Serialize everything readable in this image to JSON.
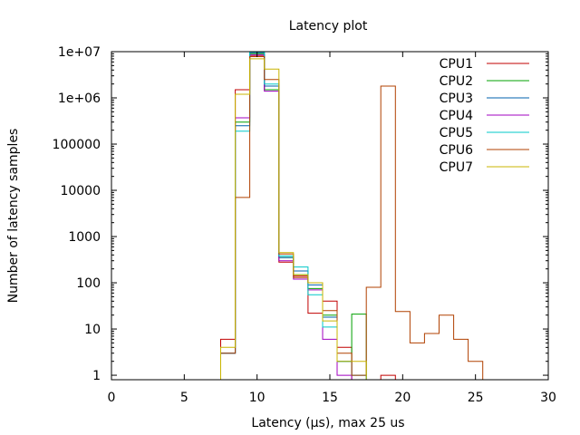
{
  "chart_data": {
    "type": "line",
    "step": true,
    "title": "Latency plot",
    "xlabel": "Latency (µs), max 25 us",
    "ylabel": "Number of latency samples",
    "xlim": [
      0,
      30
    ],
    "ylim": [
      0.8,
      10000000
    ],
    "yscale": "log",
    "grid": false,
    "legend_position": "top-right",
    "x_ticks": [
      0,
      5,
      10,
      15,
      20,
      25,
      30
    ],
    "x_tick_labels": [
      "0",
      "5",
      "10",
      "15",
      "20",
      "25",
      "30"
    ],
    "y_ticks": [
      1,
      10,
      100,
      1000,
      10000,
      100000,
      1000000,
      10000000
    ],
    "y_tick_labels": [
      "1",
      "10",
      "100",
      "1000",
      "10000",
      "100000",
      "1e+06",
      "1e+07"
    ],
    "x": [
      0,
      1,
      2,
      3,
      4,
      5,
      6,
      7,
      8,
      9,
      10,
      11,
      12,
      13,
      14,
      15,
      16,
      17,
      18,
      19,
      20,
      21,
      22,
      23,
      24,
      25
    ],
    "series": [
      {
        "name": "CPU1",
        "color": "#c00000",
        "values": [
          0,
          0,
          0,
          0,
          0,
          0,
          0,
          0,
          6,
          1500000,
          8000000,
          1500000,
          280,
          140,
          22,
          40,
          4,
          0,
          0,
          1,
          0,
          0,
          0,
          0,
          0,
          0
        ]
      },
      {
        "name": "CPU2",
        "color": "#00a000",
        "values": [
          0,
          0,
          0,
          0,
          0,
          0,
          0,
          0,
          3,
          300000,
          9000000,
          1500000,
          350,
          150,
          75,
          20,
          2,
          21,
          0,
          0,
          0,
          0,
          0,
          0,
          0,
          0
        ]
      },
      {
        "name": "CPU3",
        "color": "#0060ad",
        "values": [
          0,
          0,
          0,
          0,
          0,
          0,
          0,
          0,
          3,
          250000,
          9500000,
          1800000,
          350,
          180,
          90,
          18,
          2,
          1,
          0,
          0,
          0,
          0,
          0,
          0,
          0,
          0
        ]
      },
      {
        "name": "CPU4",
        "color": "#a000c0",
        "values": [
          0,
          0,
          0,
          0,
          0,
          0,
          0,
          0,
          3,
          370000,
          8500000,
          1400000,
          300,
          120,
          70,
          6,
          1,
          0,
          0,
          0,
          0,
          0,
          0,
          0,
          0,
          0
        ]
      },
      {
        "name": "CPU5",
        "color": "#00c8c8",
        "values": [
          0,
          0,
          0,
          0,
          0,
          0,
          0,
          0,
          3,
          190000,
          9800000,
          2000000,
          380,
          220,
          55,
          11,
          2,
          1,
          0,
          0,
          0,
          0,
          0,
          0,
          0,
          0
        ]
      },
      {
        "name": "CPU6",
        "color": "#b04000",
        "values": [
          0,
          0,
          0,
          0,
          0,
          0,
          0,
          0,
          3,
          7000,
          7800000,
          2500000,
          420,
          130,
          100,
          25,
          3,
          1,
          80,
          1800000,
          24,
          5,
          8,
          20,
          6,
          2
        ]
      },
      {
        "name": "CPU7",
        "color": "#c8b400",
        "values": [
          0,
          0,
          0,
          0,
          0,
          0,
          0,
          0,
          4,
          1200000,
          7000000,
          4200000,
          450,
          150,
          100,
          15,
          2,
          2,
          0,
          0,
          0,
          0,
          0,
          0,
          0,
          0
        ]
      }
    ]
  }
}
